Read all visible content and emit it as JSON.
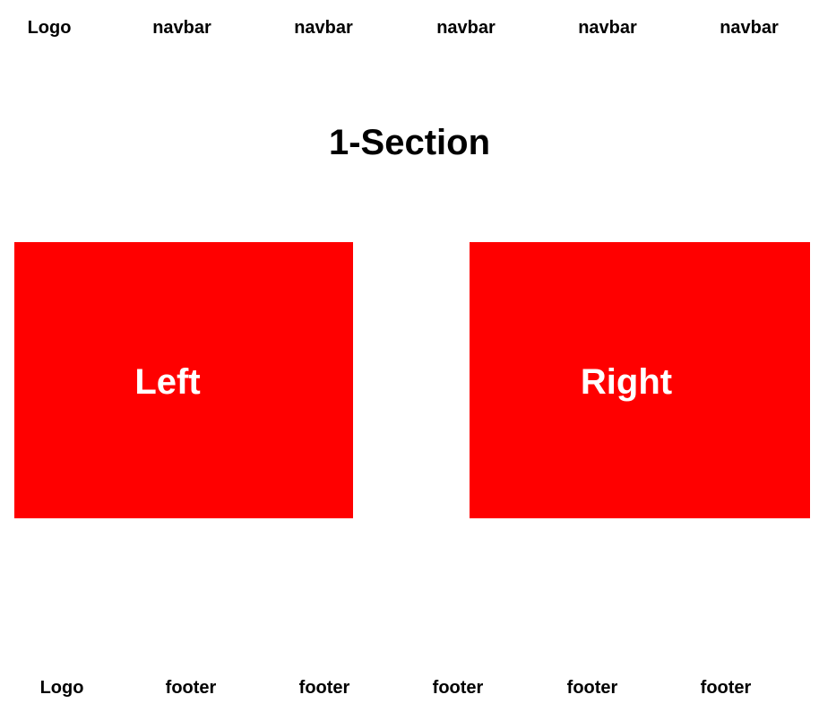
{
  "header": {
    "logo": "Logo",
    "nav_items": [
      "navbar",
      "navbar",
      "navbar",
      "navbar",
      "navbar"
    ]
  },
  "section": {
    "title": "1-Section"
  },
  "boxes": {
    "left_label": "Left",
    "right_label": "Right",
    "color": "#ff0000",
    "text_color": "#ffffff"
  },
  "footer": {
    "logo": "Logo",
    "items": [
      "footer",
      "footer",
      "footer",
      "footer",
      "footer"
    ]
  }
}
